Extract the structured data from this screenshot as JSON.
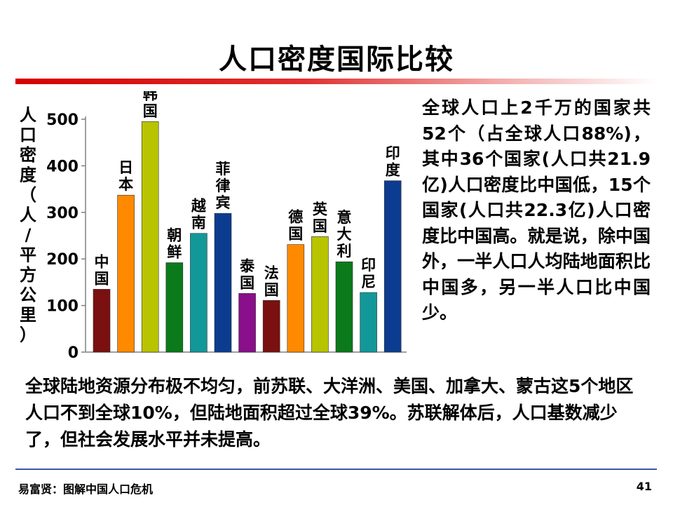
{
  "title": "人口密度国际比较",
  "chart_data": {
    "type": "bar",
    "ylabel": "人口密度（人/平方公里）",
    "ylim": [
      0,
      500
    ],
    "yticks": [
      0,
      100,
      200,
      300,
      400,
      500
    ],
    "categories": [
      "中国",
      "日本",
      "韩国",
      "朝鲜",
      "越南",
      "菲律宾",
      "泰国",
      "法国",
      "德国",
      "英国",
      "意大利",
      "印尼",
      "印度"
    ],
    "values": [
      135,
      337,
      495,
      192,
      255,
      298,
      126,
      111,
      231,
      248,
      194,
      128,
      368
    ],
    "colors": [
      "#7a1010",
      "#ff8a00",
      "#b8c400",
      "#0a7a1a",
      "#129898",
      "#0c3c90",
      "#8a0f8a",
      "#7a1010",
      "#ff8a00",
      "#b8c400",
      "#0a7a1a",
      "#129898",
      "#0c3c90"
    ]
  },
  "right_text": "全球人口上2千万的国家共52个（占全球人口88%)，其中36个国家(人口共21.9亿)人口密度比中国低，15个国家(人口共22.3亿)人口密度比中国高。就是说，除中国外，一半人口人均陆地面积比中国多，另一半人口比中国少。",
  "bottom_text": "全球陆地资源分布极不均匀，前苏联、大洋洲、美国、加拿大、蒙古这5个地区人口不到全球10%，但陆地面积超过全球39%。苏联解体后，人口基数减少了，但社会发展水平并未提高。",
  "footer": {
    "author": "易富贤：图解中国人口危机",
    "page": "41"
  }
}
